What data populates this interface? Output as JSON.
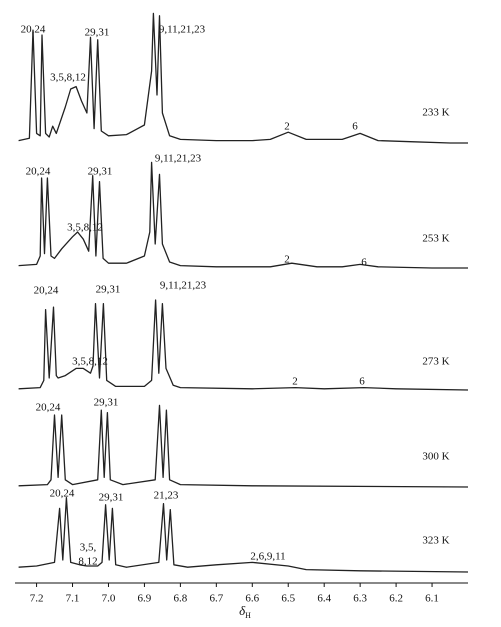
{
  "chart_data": {
    "type": "stacked-spectra",
    "color": "#222222",
    "xlim": [
      7.26,
      6.0
    ],
    "xticks": [
      7.2,
      7.1,
      {
        "value": 7,
        "label": "7.0"
      },
      6.9,
      6.8,
      6.7,
      6.6,
      6.5,
      6.4,
      6.3,
      6.2,
      6.1
    ],
    "x_label": {
      "symbol": "δ",
      "subscript": "H"
    },
    "series": [
      {
        "name": "233 K",
        "annotations": [
          "20,24",
          "3,5,8,12",
          "29,31",
          "9,11,21,23",
          "2",
          "6"
        ],
        "x": [
          7.25,
          7.22,
          7.21,
          7.2,
          7.19,
          7.185,
          7.175,
          7.165,
          7.155,
          7.145,
          7.12,
          7.105,
          7.09,
          7.075,
          7.06,
          7.05,
          7.04,
          7.03,
          7.02,
          7.0,
          6.95,
          6.9,
          6.88,
          6.875,
          6.865,
          6.858,
          6.85,
          6.83,
          6.8,
          6.7,
          6.6,
          6.55,
          6.5,
          6.45,
          6.35,
          6.3,
          6.25,
          6.15,
          6.05,
          6.0
        ],
        "values": [
          2,
          4,
          94,
          8,
          6,
          90,
          8,
          5,
          14,
          8,
          30,
          45,
          47,
          35,
          25,
          88,
          12,
          86,
          10,
          6,
          7,
          15,
          60,
          108,
          40,
          106,
          25,
          6,
          3,
          2,
          2,
          3,
          9,
          3,
          3,
          8,
          2,
          1,
          0,
          0
        ]
      },
      {
        "name": "253 K",
        "annotations": [
          "20,24",
          "3,5,8,12",
          "29,31",
          "9,11,21,23",
          "2",
          "6"
        ],
        "x": [
          7.25,
          7.2,
          7.19,
          7.186,
          7.178,
          7.17,
          7.16,
          7.15,
          7.13,
          7.1,
          7.086,
          7.07,
          7.055,
          7.044,
          7.035,
          7.025,
          7.015,
          7.0,
          6.95,
          6.9,
          6.885,
          6.88,
          6.87,
          6.858,
          6.85,
          6.83,
          6.8,
          6.7,
          6.55,
          6.49,
          6.42,
          6.35,
          6.3,
          6.25,
          6.1,
          6.0
        ],
        "values": [
          2,
          3,
          10,
          75,
          12,
          75,
          10,
          8,
          16,
          26,
          30,
          24,
          14,
          77,
          10,
          72,
          8,
          4,
          4,
          10,
          30,
          88,
          20,
          78,
          20,
          5,
          2,
          1,
          1,
          4,
          1,
          1,
          3,
          1,
          0,
          0
        ]
      },
      {
        "name": "273 K",
        "annotations": [
          "20,24",
          "3,5,8,12",
          "29,31",
          "9,11,21,23",
          "2",
          "6"
        ],
        "x": [
          7.25,
          7.19,
          7.18,
          7.175,
          7.165,
          7.153,
          7.145,
          7.14,
          7.12,
          7.09,
          7.07,
          7.05,
          7.043,
          7.036,
          7.025,
          7.014,
          7.005,
          6.98,
          6.9,
          6.88,
          6.869,
          6.86,
          6.85,
          6.84,
          6.82,
          6.8,
          6.6,
          6.48,
          6.4,
          6.29,
          6.2,
          6.0
        ],
        "values": [
          1,
          2,
          8,
          67,
          10,
          69,
          12,
          10,
          12,
          18,
          18,
          14,
          20,
          72,
          10,
          72,
          8,
          3,
          3,
          8,
          75,
          14,
          72,
          18,
          4,
          2,
          1,
          2,
          1,
          2,
          1,
          0
        ]
      },
      {
        "name": "300 K",
        "annotations": [
          "20,24",
          "29,31"
        ],
        "x": [
          7.25,
          7.17,
          7.16,
          7.15,
          7.14,
          7.13,
          7.12,
          7.1,
          7.03,
          7.02,
          7.012,
          7.003,
          6.995,
          6.96,
          6.87,
          6.858,
          6.848,
          6.839,
          6.83,
          6.8,
          6.6,
          6.0
        ],
        "values": [
          1,
          2,
          6,
          60,
          8,
          60,
          6,
          2,
          6,
          64,
          8,
          62,
          6,
          2,
          6,
          68,
          8,
          64,
          6,
          2,
          1,
          0
        ]
      },
      {
        "name": "323 K",
        "annotations": [
          "20,24",
          "29,31",
          "21,23",
          "3,5,",
          "8,12",
          "2,6,9,11"
        ],
        "x": [
          7.25,
          7.2,
          7.15,
          7.136,
          7.127,
          7.117,
          7.105,
          7.08,
          7.06,
          7.03,
          7.018,
          7.008,
          6.998,
          6.989,
          6.98,
          6.95,
          6.86,
          6.847,
          6.838,
          6.828,
          6.818,
          6.78,
          6.7,
          6.6,
          6.5,
          6.45,
          6.3,
          6.0
        ],
        "values": [
          4,
          5,
          8,
          53,
          10,
          62,
          8,
          6,
          5,
          5,
          8,
          56,
          10,
          53,
          6,
          4,
          8,
          57,
          10,
          52,
          6,
          4,
          6,
          8,
          5,
          2,
          1,
          0
        ]
      }
    ]
  }
}
